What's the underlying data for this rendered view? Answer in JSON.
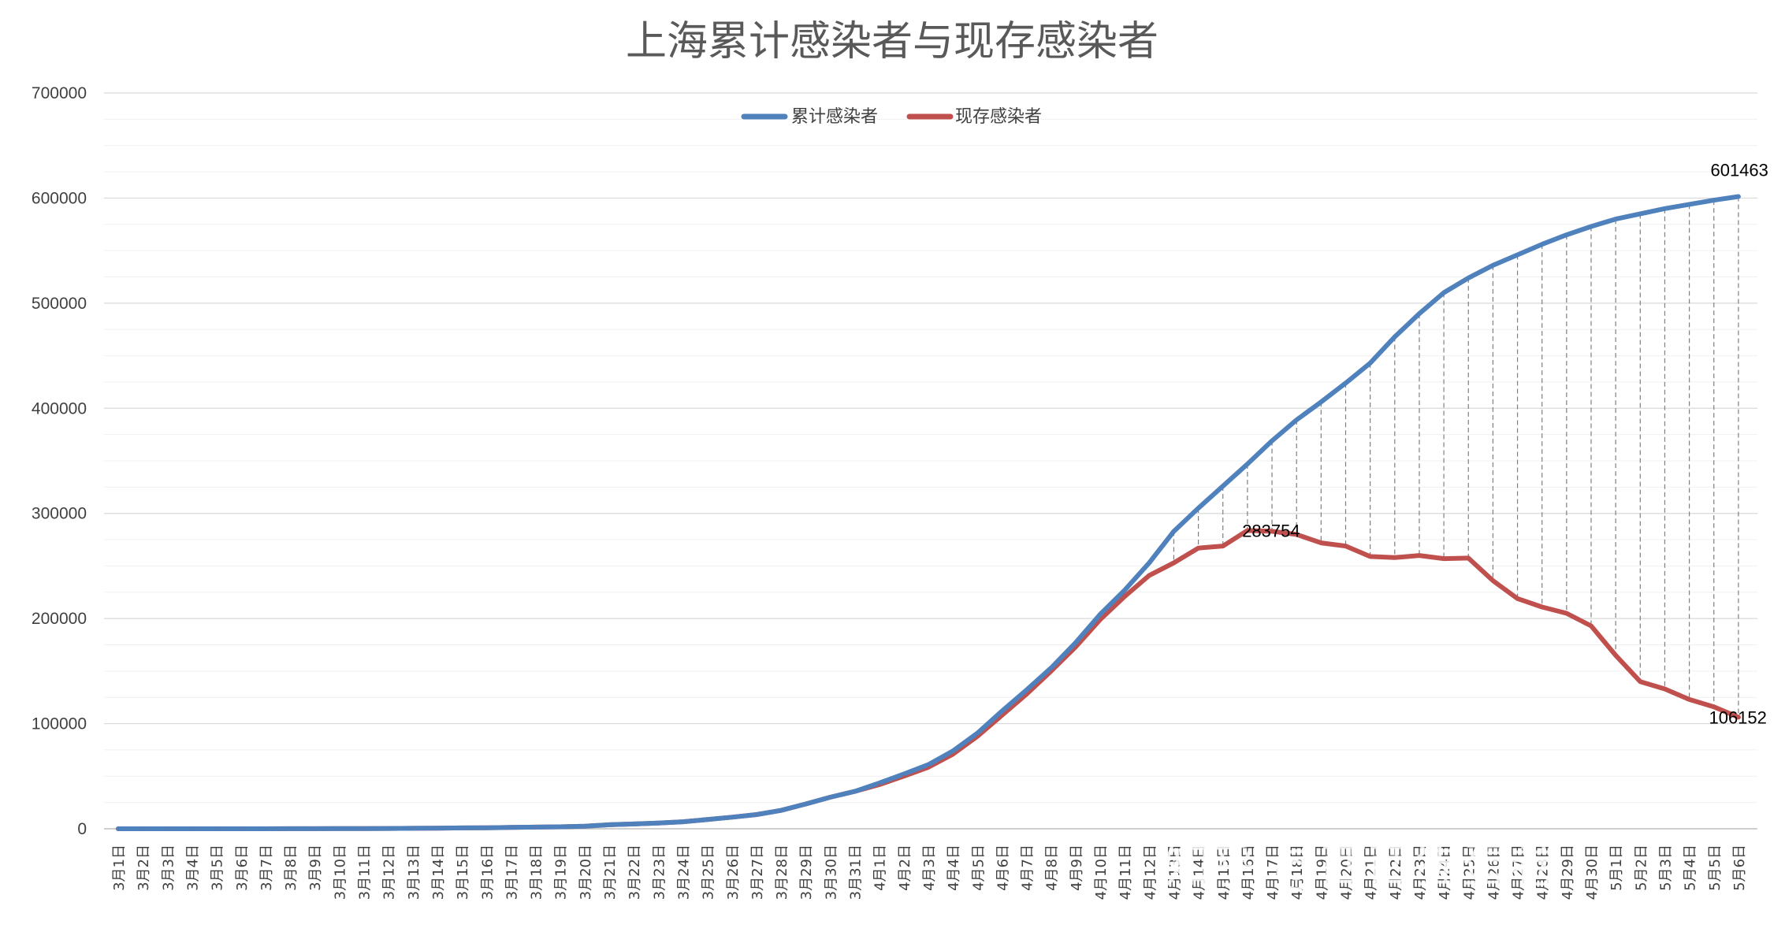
{
  "chart_data": {
    "type": "line",
    "title": "上海累计感染者与现存感染者",
    "ylim": [
      0,
      700000
    ],
    "yticks": [
      0,
      100000,
      200000,
      300000,
      400000,
      500000,
      600000,
      700000
    ],
    "ytick_labels": [
      "0",
      "100000",
      "200000",
      "300000",
      "400000",
      "500000",
      "600000",
      "700000"
    ],
    "grid": true,
    "legend": "top-center",
    "categories": [
      "3月1日",
      "3月2日",
      "3月3日",
      "3月4日",
      "3月5日",
      "3月6日",
      "3月7日",
      "3月8日",
      "3月9日",
      "3月10日",
      "3月11日",
      "3月12日",
      "3月13日",
      "3月14日",
      "3月15日",
      "3月16日",
      "3月17日",
      "3月18日",
      "3月19日",
      "3月20日",
      "3月21日",
      "3月22日",
      "3月23日",
      "3月24日",
      "3月25日",
      "3月26日",
      "3月27日",
      "3月28日",
      "3月29日",
      "3月30日",
      "3月31日",
      "4月1日",
      "4月2日",
      "4月3日",
      "4月4日",
      "4月5日",
      "4月6日",
      "4月7日",
      "4月8日",
      "4月9日",
      "4月10日",
      "4月11日",
      "4月12日",
      "4月13日",
      "4月14日",
      "4月15日",
      "4月16日",
      "4月17日",
      "4月18日",
      "4月19日",
      "4月20日",
      "4月21日",
      "4月22日",
      "4月23日",
      "4月24日",
      "4月25日",
      "4月26日",
      "4月27日",
      "4月28日",
      "4月29日",
      "4月30日",
      "5月1日",
      "5月2日",
      "5月3日",
      "5月4日",
      "5月5日",
      "5月6日"
    ],
    "series": [
      {
        "name": "累计感染者",
        "color": "#4f81bd",
        "values": [
          2,
          3,
          6,
          9,
          12,
          18,
          25,
          45,
          105,
          170,
          240,
          305,
          480,
          620,
          800,
          1000,
          1300,
          1600,
          1900,
          2400,
          3800,
          4600,
          5500,
          6700,
          8800,
          11000,
          13500,
          17500,
          23500,
          30000,
          35500,
          43500,
          52000,
          61000,
          74000,
          91000,
          112000,
          132000,
          153000,
          177000,
          204000,
          227000,
          253000,
          283000,
          305000,
          326000,
          347000,
          369000,
          389000,
          406000,
          424000,
          443000,
          468000,
          490000,
          510000,
          524000,
          536000,
          546000,
          556000,
          565000,
          573000,
          580000,
          585000,
          590000,
          594000,
          598000,
          601463
        ]
      },
      {
        "name": "现存感染者",
        "color": "#c0504d",
        "values": [
          2,
          3,
          6,
          9,
          12,
          18,
          25,
          45,
          105,
          170,
          240,
          305,
          480,
          620,
          800,
          1000,
          1300,
          1600,
          1900,
          2400,
          3800,
          4600,
          5500,
          6700,
          8800,
          11000,
          13500,
          17500,
          23500,
          30000,
          35500,
          42000,
          50000,
          58500,
          71000,
          88000,
          108000,
          128000,
          150000,
          173000,
          199000,
          221000,
          241000,
          253000,
          267000,
          269000,
          283754,
          283000,
          280000,
          272000,
          269000,
          259000,
          258000,
          260000,
          257000,
          257500,
          236000,
          219000,
          211000,
          205000,
          193000,
          165000,
          140000,
          133000,
          123000,
          116000,
          106152
        ]
      }
    ],
    "annotations": [
      "601463",
      "283754",
      "106152"
    ]
  },
  "watermark": "知乎 @西西猫蛋卷"
}
